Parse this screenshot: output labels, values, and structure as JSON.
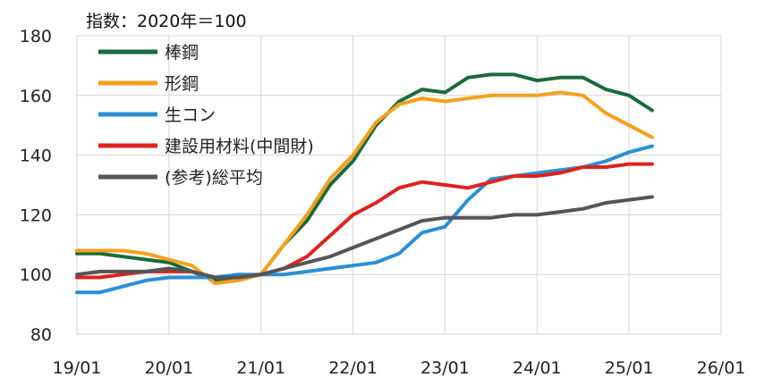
{
  "chart_data": {
    "type": "line",
    "index_note": "指数：2020年＝100",
    "ylim": [
      80,
      180
    ],
    "y_ticks": [
      80,
      100,
      120,
      140,
      160,
      180
    ],
    "x_ticks": [
      "19/01",
      "20/01",
      "21/01",
      "22/01",
      "23/01",
      "24/01",
      "25/01",
      "26/01"
    ],
    "grid": true,
    "legend_position": "top-left",
    "series": [
      {
        "name": "棒鋼",
        "color": "#1a6b3a",
        "points": [
          [
            "19/01",
            107
          ],
          [
            "19/04",
            107
          ],
          [
            "19/07",
            106
          ],
          [
            "19/10",
            105
          ],
          [
            "20/01",
            104
          ],
          [
            "20/04",
            101
          ],
          [
            "20/07",
            98
          ],
          [
            "20/10",
            98
          ],
          [
            "21/01",
            100
          ],
          [
            "21/04",
            110
          ],
          [
            "21/07",
            118
          ],
          [
            "21/10",
            130
          ],
          [
            "22/01",
            138
          ],
          [
            "22/04",
            150
          ],
          [
            "22/07",
            158
          ],
          [
            "22/10",
            162
          ],
          [
            "23/01",
            161
          ],
          [
            "23/04",
            166
          ],
          [
            "23/07",
            167
          ],
          [
            "23/10",
            167
          ],
          [
            "24/01",
            165
          ],
          [
            "24/04",
            166
          ],
          [
            "24/07",
            166
          ],
          [
            "24/10",
            162
          ],
          [
            "25/01",
            160
          ],
          [
            "25/04",
            155
          ]
        ]
      },
      {
        "name": "形鋼",
        "color": "#f5a01e",
        "points": [
          [
            "19/01",
            108
          ],
          [
            "19/04",
            108
          ],
          [
            "19/07",
            108
          ],
          [
            "19/10",
            107
          ],
          [
            "20/01",
            105
          ],
          [
            "20/04",
            103
          ],
          [
            "20/07",
            97
          ],
          [
            "20/10",
            98
          ],
          [
            "21/01",
            100
          ],
          [
            "21/04",
            110
          ],
          [
            "21/07",
            120
          ],
          [
            "21/10",
            132
          ],
          [
            "22/01",
            140
          ],
          [
            "22/04",
            151
          ],
          [
            "22/07",
            157
          ],
          [
            "22/10",
            159
          ],
          [
            "23/01",
            158
          ],
          [
            "23/04",
            159
          ],
          [
            "23/07",
            160
          ],
          [
            "23/10",
            160
          ],
          [
            "24/01",
            160
          ],
          [
            "24/04",
            161
          ],
          [
            "24/07",
            160
          ],
          [
            "24/10",
            154
          ],
          [
            "25/01",
            150
          ],
          [
            "25/04",
            146
          ]
        ]
      },
      {
        "name": "生コン",
        "color": "#2b8fd6",
        "points": [
          [
            "19/01",
            94
          ],
          [
            "19/04",
            94
          ],
          [
            "19/07",
            96
          ],
          [
            "19/10",
            98
          ],
          [
            "20/01",
            99
          ],
          [
            "20/04",
            99
          ],
          [
            "20/07",
            99
          ],
          [
            "20/10",
            100
          ],
          [
            "21/01",
            100
          ],
          [
            "21/04",
            100
          ],
          [
            "21/07",
            101
          ],
          [
            "21/10",
            102
          ],
          [
            "22/01",
            103
          ],
          [
            "22/04",
            104
          ],
          [
            "22/07",
            107
          ],
          [
            "22/10",
            114
          ],
          [
            "23/01",
            116
          ],
          [
            "23/04",
            125
          ],
          [
            "23/07",
            132
          ],
          [
            "23/10",
            133
          ],
          [
            "24/01",
            134
          ],
          [
            "24/04",
            135
          ],
          [
            "24/07",
            136
          ],
          [
            "24/10",
            138
          ],
          [
            "25/01",
            141
          ],
          [
            "25/04",
            143
          ]
        ]
      },
      {
        "name": "建設用材料(中間財)",
        "color": "#e0211f",
        "points": [
          [
            "19/01",
            99
          ],
          [
            "19/04",
            99
          ],
          [
            "19/07",
            100
          ],
          [
            "19/10",
            101
          ],
          [
            "20/01",
            101
          ],
          [
            "20/04",
            101
          ],
          [
            "20/07",
            99
          ],
          [
            "20/10",
            99
          ],
          [
            "21/01",
            100
          ],
          [
            "21/04",
            102
          ],
          [
            "21/07",
            106
          ],
          [
            "21/10",
            113
          ],
          [
            "22/01",
            120
          ],
          [
            "22/04",
            124
          ],
          [
            "22/07",
            129
          ],
          [
            "22/10",
            131
          ],
          [
            "23/01",
            130
          ],
          [
            "23/04",
            129
          ],
          [
            "23/07",
            131
          ],
          [
            "23/10",
            133
          ],
          [
            "24/01",
            133
          ],
          [
            "24/04",
            134
          ],
          [
            "24/07",
            136
          ],
          [
            "24/10",
            136
          ],
          [
            "25/01",
            137
          ],
          [
            "25/04",
            137
          ]
        ]
      },
      {
        "name": "(参考)総平均",
        "color": "#555555",
        "points": [
          [
            "19/01",
            100
          ],
          [
            "19/04",
            101
          ],
          [
            "19/07",
            101
          ],
          [
            "19/10",
            101
          ],
          [
            "20/01",
            102
          ],
          [
            "20/04",
            101
          ],
          [
            "20/07",
            99
          ],
          [
            "20/10",
            99
          ],
          [
            "21/01",
            100
          ],
          [
            "21/04",
            102
          ],
          [
            "21/07",
            104
          ],
          [
            "21/10",
            106
          ],
          [
            "22/01",
            109
          ],
          [
            "22/04",
            112
          ],
          [
            "22/07",
            115
          ],
          [
            "22/10",
            118
          ],
          [
            "23/01",
            119
          ],
          [
            "23/04",
            119
          ],
          [
            "23/07",
            119
          ],
          [
            "23/10",
            120
          ],
          [
            "24/01",
            120
          ],
          [
            "24/04",
            121
          ],
          [
            "24/07",
            122
          ],
          [
            "24/10",
            124
          ],
          [
            "25/01",
            125
          ],
          [
            "25/04",
            126
          ]
        ]
      }
    ]
  }
}
